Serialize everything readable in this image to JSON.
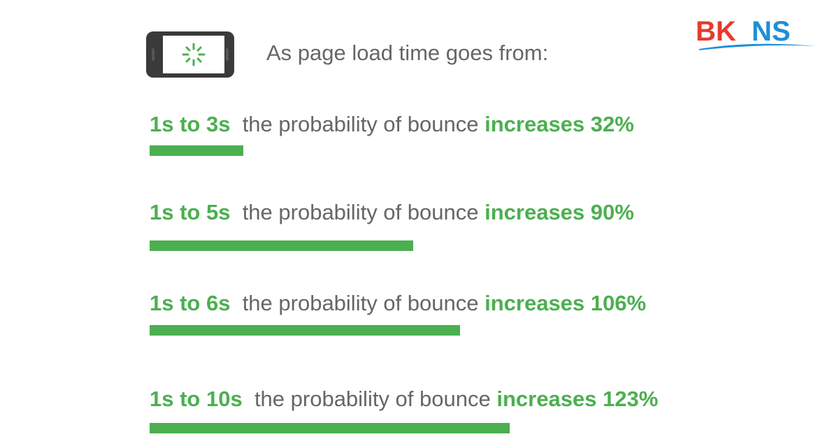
{
  "intro": "As page load time goes from:",
  "logo": "BKNS",
  "colors": {
    "accent": "#4caf50",
    "text": "#666666",
    "logo_red": "#e63a2e",
    "logo_blue": "#1e8fd8"
  },
  "icons": {
    "phone": "phone-loading-icon"
  },
  "chart_data": {
    "type": "bar",
    "orientation": "horizontal",
    "categories": [
      "1s to 3s",
      "1s to 5s",
      "1s to 6s",
      "1s to 10s"
    ],
    "values": [
      32,
      90,
      106,
      123
    ],
    "unit": "%",
    "rows": [
      {
        "range": "1s to 3s",
        "middle": "the probability of bounce",
        "result": "increases 32%"
      },
      {
        "range": "1s to 5s",
        "middle": "the probability of bounce",
        "result": "increases 90%"
      },
      {
        "range": "1s to 6s",
        "middle": "the probability of bounce",
        "result": "increases 106%"
      },
      {
        "range": "1s to 10s",
        "middle": "the probability of bounce",
        "result": "increases 123%"
      }
    ]
  }
}
